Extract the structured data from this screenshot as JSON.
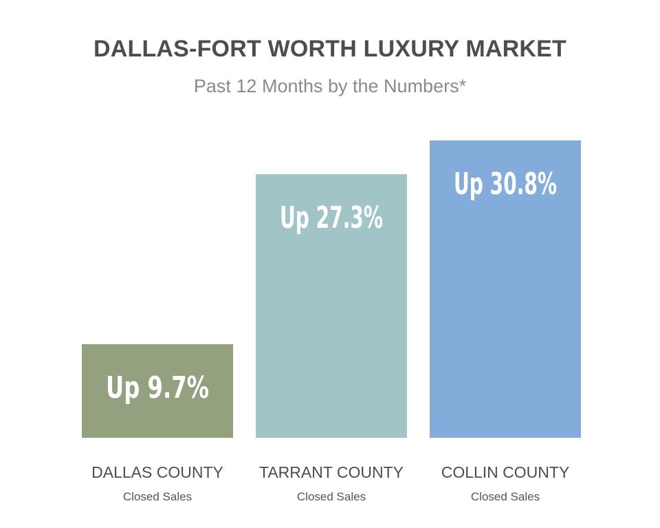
{
  "chart_data": {
    "type": "bar",
    "title": "DALLAS-FORT WORTH LUXURY MARKET",
    "subtitle": "Past 12 Months by the Numbers*",
    "categories": [
      "DALLAS COUNTY",
      "TARRANT COUNTY",
      "COLLIN COUNTY"
    ],
    "category_sublabels": [
      "Closed Sales",
      "Closed Sales",
      "Closed Sales"
    ],
    "values": [
      9.7,
      27.3,
      30.8
    ],
    "data_labels": [
      "Up 9.7%",
      "Up 27.3%",
      "Up 30.8%"
    ],
    "ylim": [
      0,
      30.8
    ],
    "grid": false,
    "legend": "none",
    "colors": [
      "#93a17e",
      "#a1c4c7",
      "#84acdb"
    ]
  }
}
